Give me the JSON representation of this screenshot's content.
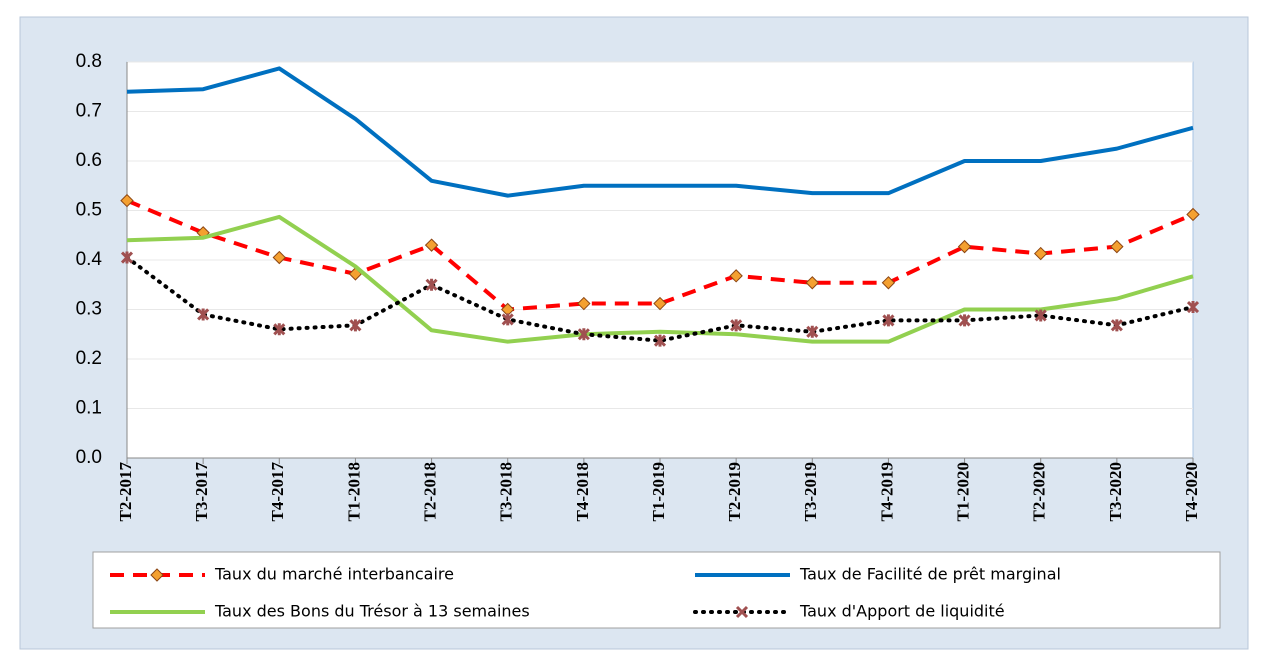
{
  "chart_data": {
    "type": "line",
    "categories": [
      "T2-2017",
      "T3-2017",
      "T4-2017",
      "T1-2018",
      "T2-2018",
      "T3-2018",
      "T4-2018",
      "T1-2019",
      "T2-2019",
      "T3-2019",
      "T4-2019",
      "T1-2020",
      "T2-2020",
      "T3-2020",
      "T4-2020"
    ],
    "series": [
      {
        "name": "Taux du marché interbancaire",
        "color": "#ff0000",
        "values": [
          0.52,
          0.455,
          0.405,
          0.372,
          0.43,
          0.3,
          0.312,
          0.312,
          0.368,
          0.354,
          0.354,
          0.427,
          0.413,
          0.427,
          0.492
        ]
      },
      {
        "name": "Taux de Facilité de prêt marginal",
        "color": "#0070c0",
        "values": [
          0.74,
          0.745,
          0.787,
          0.685,
          0.56,
          0.53,
          0.55,
          0.55,
          0.55,
          0.535,
          0.535,
          0.6,
          0.6,
          0.625,
          0.667
        ]
      },
      {
        "name": "Taux des Bons du Trésor à 13 semaines",
        "color": "#92d050",
        "values": [
          0.44,
          0.445,
          0.487,
          0.387,
          0.258,
          0.235,
          0.25,
          0.255,
          0.25,
          0.235,
          0.235,
          0.3,
          0.3,
          0.322,
          0.367
        ]
      },
      {
        "name": "Taux d'Apport de liquidité",
        "color": "#000000",
        "values": [
          0.405,
          0.29,
          0.26,
          0.268,
          0.35,
          0.28,
          0.25,
          0.237,
          0.268,
          0.255,
          0.278,
          0.278,
          0.288,
          0.268,
          0.305
        ]
      }
    ],
    "ylim": [
      0,
      0.8
    ],
    "yticks": [
      {
        "value": 0,
        "label": "0.0"
      },
      0.1,
      0.2,
      0.3,
      0.4,
      0.5,
      0.6,
      0.7,
      0.8
    ],
    "grid": true
  }
}
